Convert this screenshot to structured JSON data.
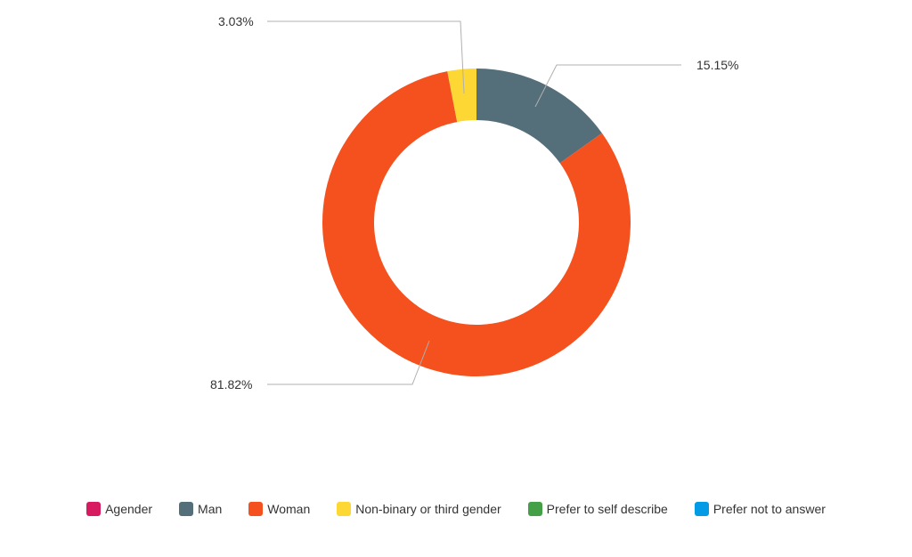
{
  "chart_data": {
    "type": "pie",
    "variant": "donut",
    "title": "",
    "categories": [
      "Agender",
      "Man",
      "Woman",
      "Non-binary or third gender",
      "Prefer to self describe",
      "Prefer not to answer"
    ],
    "values": [
      0,
      15.15,
      81.82,
      3.03,
      0,
      0
    ],
    "unit": "%",
    "colors": [
      "#d81b60",
      "#546e7a",
      "#f4511e",
      "#fdd835",
      "#43a047",
      "#039be5"
    ],
    "data_labels": [
      {
        "category": "Man",
        "text": "15.15%"
      },
      {
        "category": "Woman",
        "text": "81.82%"
      },
      {
        "category": "Non-binary or third gender",
        "text": "3.03%"
      }
    ],
    "legend_position": "bottom",
    "start_angle_deg": 0,
    "direction": "clockwise"
  },
  "legend": {
    "items": [
      {
        "label": "Agender",
        "color": "#d81b60"
      },
      {
        "label": "Man",
        "color": "#546e7a"
      },
      {
        "label": "Woman",
        "color": "#f4511e"
      },
      {
        "label": "Non-binary or third gender",
        "color": "#fdd835"
      },
      {
        "label": "Prefer to self describe",
        "color": "#43a047"
      },
      {
        "label": "Prefer not to answer",
        "color": "#039be5"
      }
    ]
  },
  "labels": {
    "man": "15.15%",
    "woman": "81.82%",
    "nonbinary": "3.03%"
  }
}
